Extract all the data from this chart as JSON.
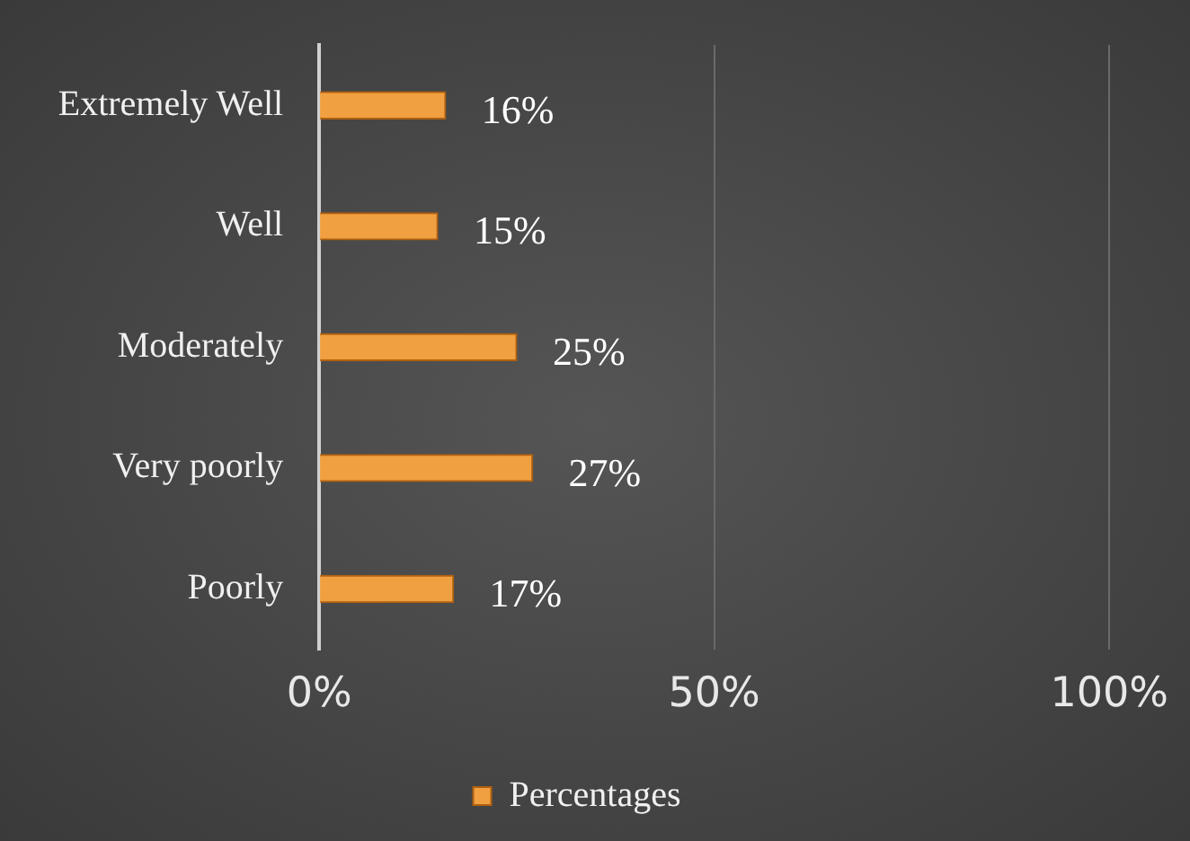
{
  "chart_data": {
    "type": "bar",
    "orientation": "horizontal",
    "categories": [
      "Extremely Well",
      "Well",
      "Moderately",
      "Very poorly",
      "Poorly"
    ],
    "series": [
      {
        "name": "Percentages",
        "color": "#f0a040",
        "values": [
          16,
          15,
          25,
          27,
          17
        ]
      }
    ],
    "xlim": [
      0,
      100
    ],
    "xticks": [
      {
        "value": 0,
        "label": "0%"
      },
      {
        "value": 50,
        "label": "50%"
      },
      {
        "value": 100,
        "label": "100%"
      }
    ],
    "value_labels": [
      "16%",
      "15%",
      "25%",
      "27%",
      "17%"
    ],
    "grid": "x",
    "legend": "bottom"
  }
}
